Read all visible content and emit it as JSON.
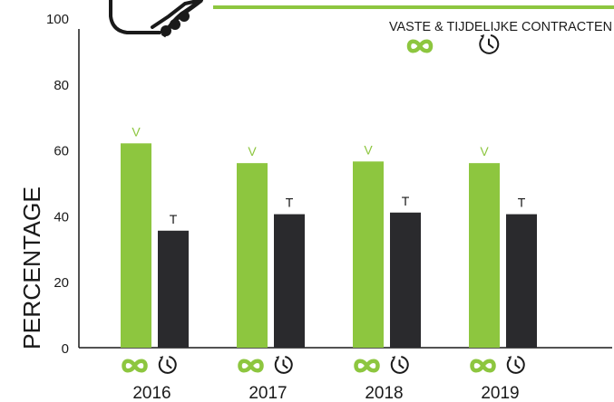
{
  "chart_data": {
    "type": "bar",
    "title": "VASTE & TIJDELIJKE CONTRACTEN",
    "ylabel": "PERCENTAGE",
    "xlabel": "",
    "categories": [
      "2016",
      "2017",
      "2018",
      "2019"
    ],
    "ylim": [
      0,
      100
    ],
    "yticks": [
      0,
      20,
      40,
      60,
      80,
      100
    ],
    "grid": false,
    "legend_position": "top-right",
    "series": [
      {
        "name": "V",
        "color": "#8dc63f",
        "values": [
          62,
          56,
          56.5,
          56
        ]
      },
      {
        "name": "T",
        "color": "#2a2a2d",
        "values": [
          35.5,
          40.5,
          41,
          40.5
        ]
      }
    ]
  },
  "legend": {
    "permanent_icon": "infinity-icon",
    "temporary_icon": "clock-icon"
  },
  "decoration": {
    "logo_icon": "handshake-icon",
    "accent_line_color": "#8dc63f"
  },
  "colors": {
    "accent": "#8dc63f",
    "dark": "#2a2a2d",
    "axis": "#1a1a1a"
  }
}
